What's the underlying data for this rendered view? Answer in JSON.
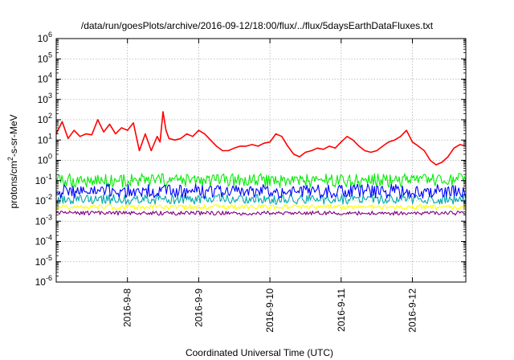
{
  "chart_data": {
    "type": "line",
    "title": "/data/run/goesPlots/archive/2016-09-12/18:00/flux/../flux/5daysEarthDataFluxes.txt",
    "xlabel": "Coordinated Universal Time (UTC)",
    "ylabel": {
      "prefix": "protons/cm",
      "sup": "2",
      "suffix": "-s-sr-MeV"
    },
    "x_scale": "time",
    "x_range": [
      "2016-09-07T00:00",
      "2016-09-12T18:00"
    ],
    "x_ticks": [
      "2016-9-8",
      "2016-9-9",
      "2016-9-10",
      "2016-9-11",
      "2016-9-12"
    ],
    "y_scale": "log",
    "ylim": [
      1e-06,
      1000000.0
    ],
    "y_ticks": [
      {
        "base": "10",
        "exp": "6"
      },
      {
        "base": "10",
        "exp": "5"
      },
      {
        "base": "10",
        "exp": "4"
      },
      {
        "base": "10",
        "exp": "3"
      },
      {
        "base": "10",
        "exp": "2"
      },
      {
        "base": "10",
        "exp": "1"
      },
      {
        "base": "10",
        "exp": "0"
      },
      {
        "base": "10",
        "exp": "-1"
      },
      {
        "base": "10",
        "exp": "-2"
      },
      {
        "base": "10",
        "exp": "-3"
      },
      {
        "base": "10",
        "exp": "-4"
      },
      {
        "base": "10",
        "exp": "-5"
      },
      {
        "base": "10",
        "exp": "-6"
      }
    ],
    "grid": true,
    "series": [
      {
        "color": "#ff0000",
        "x": [
          "2016-09-07T00:00",
          "2016-09-07T02:00",
          "2016-09-07T04:00",
          "2016-09-07T06:00",
          "2016-09-07T08:00",
          "2016-09-07T10:00",
          "2016-09-07T12:00",
          "2016-09-07T14:00",
          "2016-09-07T16:00",
          "2016-09-07T18:00",
          "2016-09-07T20:00",
          "2016-09-07T22:00",
          "2016-09-08T00:00",
          "2016-09-08T02:00",
          "2016-09-08T04:00",
          "2016-09-08T06:00",
          "2016-09-08T08:00",
          "2016-09-08T10:00",
          "2016-09-08T11:00",
          "2016-09-08T12:00",
          "2016-09-08T13:00",
          "2016-09-08T14:00",
          "2016-09-08T16:00",
          "2016-09-08T18:00",
          "2016-09-08T20:00",
          "2016-09-08T22:00",
          "2016-09-09T00:00",
          "2016-09-09T02:00",
          "2016-09-09T04:00",
          "2016-09-09T06:00",
          "2016-09-09T08:00",
          "2016-09-09T10:00",
          "2016-09-09T12:00",
          "2016-09-09T14:00",
          "2016-09-09T16:00",
          "2016-09-09T18:00",
          "2016-09-09T20:00",
          "2016-09-09T22:00",
          "2016-09-10T00:00",
          "2016-09-10T02:00",
          "2016-09-10T04:00",
          "2016-09-10T06:00",
          "2016-09-10T08:00",
          "2016-09-10T10:00",
          "2016-09-10T12:00",
          "2016-09-10T14:00",
          "2016-09-10T16:00",
          "2016-09-10T18:00",
          "2016-09-10T20:00",
          "2016-09-10T22:00",
          "2016-09-11T00:00",
          "2016-09-11T02:00",
          "2016-09-11T04:00",
          "2016-09-11T06:00",
          "2016-09-11T08:00",
          "2016-09-11T10:00",
          "2016-09-11T12:00",
          "2016-09-11T14:00",
          "2016-09-11T16:00",
          "2016-09-11T18:00",
          "2016-09-11T20:00",
          "2016-09-11T22:00",
          "2016-09-12T00:00",
          "2016-09-12T02:00",
          "2016-09-12T04:00",
          "2016-09-12T06:00",
          "2016-09-12T08:00",
          "2016-09-12T10:00",
          "2016-09-12T12:00",
          "2016-09-12T14:00",
          "2016-09-12T16:00",
          "2016-09-12T18:00"
        ],
        "values": [
          20,
          80,
          12,
          30,
          15,
          20,
          18,
          100,
          25,
          60,
          20,
          40,
          30,
          70,
          3,
          20,
          3,
          15,
          8,
          250,
          30,
          12,
          10,
          12,
          20,
          15,
          30,
          20,
          10,
          5,
          3,
          3,
          4,
          5,
          5,
          6,
          5,
          7,
          8,
          20,
          15,
          5,
          2,
          1.5,
          2.5,
          3,
          4,
          3.5,
          5,
          4,
          8,
          15,
          10,
          5,
          3,
          2.5,
          3,
          5,
          8,
          10,
          15,
          30,
          8,
          5,
          3,
          1,
          0.6,
          0.8,
          1.5,
          4,
          6,
          5
        ]
      },
      {
        "color": "#00ee00",
        "x": [
          "2016-09-07T00:00",
          "2016-09-12T18:00"
        ],
        "values": [
          0.1,
          0.1
        ]
      },
      {
        "color": "#0000ff",
        "x": [
          "2016-09-07T00:00",
          "2016-09-12T18:00"
        ],
        "values": [
          0.03,
          0.03
        ]
      },
      {
        "color": "#00aaaa",
        "x": [
          "2016-09-07T00:00",
          "2016-09-12T18:00"
        ],
        "values": [
          0.012,
          0.012
        ]
      },
      {
        "color": "#ffff00",
        "x": [
          "2016-09-07T00:00",
          "2016-09-12T18:00"
        ],
        "values": [
          0.005,
          0.005
        ]
      },
      {
        "color": "#800080",
        "x": [
          "2016-09-07T00:00",
          "2016-09-12T18:00"
        ],
        "values": [
          0.0025,
          0.0025
        ]
      }
    ]
  }
}
